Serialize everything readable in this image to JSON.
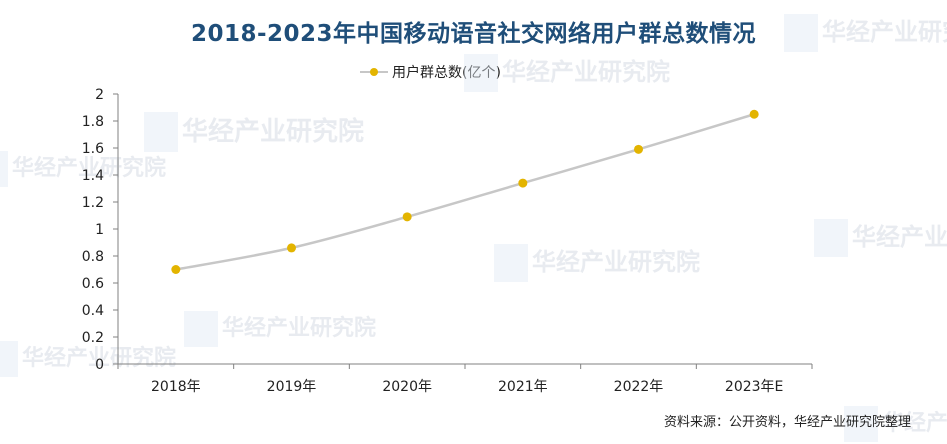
{
  "title": "2018-2023年中国移动语音社交网络用户群总数情况",
  "source": "资料来源：公开资料，华经产业研究院整理",
  "watermark": "华经产业研究院",
  "colors": {
    "title": "#1f4e79",
    "line": "#c7c7c7",
    "marker": "#e3b400",
    "axis": "#808080"
  },
  "chart_data": {
    "type": "line",
    "title": "2018-2023年中国移动语音社交网络用户群总数情况",
    "categories": [
      "2018年",
      "2019年",
      "2020年",
      "2021年",
      "2022年",
      "2023年E"
    ],
    "series": [
      {
        "name": "用户群总数(亿个)",
        "values": [
          0.7,
          0.86,
          1.09,
          1.34,
          1.59,
          1.85
        ]
      }
    ],
    "ylim": [
      0,
      2
    ],
    "yticks": [
      "0",
      "0.2",
      "0.4",
      "0.6",
      "0.8",
      "1",
      "1.2",
      "1.4",
      "1.6",
      "1.8",
      "2"
    ],
    "legend_position": "top",
    "grid": false
  }
}
